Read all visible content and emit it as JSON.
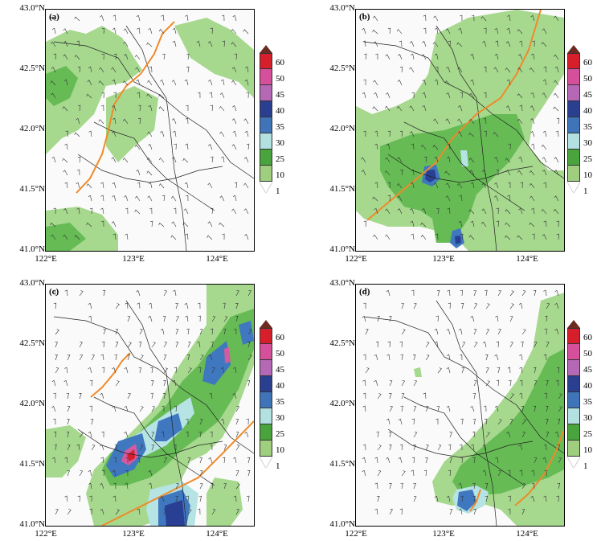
{
  "panels": [
    {
      "label": "(a)"
    },
    {
      "label": "(b)"
    },
    {
      "label": "(c)"
    },
    {
      "label": "(d)"
    }
  ],
  "y_ticks": [
    "43.0°N",
    "42.5°N",
    "42.0°N",
    "41.5°N",
    "41.0°N"
  ],
  "x_ticks": [
    "122°E",
    "123°E",
    "124°E"
  ],
  "colorbar": {
    "levels": [
      "60",
      "50",
      "45",
      "40",
      "35",
      "30",
      "25",
      "10",
      "1"
    ],
    "colors": [
      "#6b2b20",
      "#d71e2b",
      "#d64f9b",
      "#b468b6",
      "#2a3f8f",
      "#3f74b9",
      "#b3e0e0",
      "#4aa43d",
      "#9fcf7e",
      "#ffffff"
    ]
  },
  "colors": {
    "front": "#f08a2a",
    "light_green": "#a6d88e",
    "green": "#66bb55",
    "cyan": "#b6e3e3",
    "blue": "#3f78bf",
    "dark_blue": "#293f93",
    "magenta": "#d35ba0",
    "red": "#d91e2b"
  }
}
